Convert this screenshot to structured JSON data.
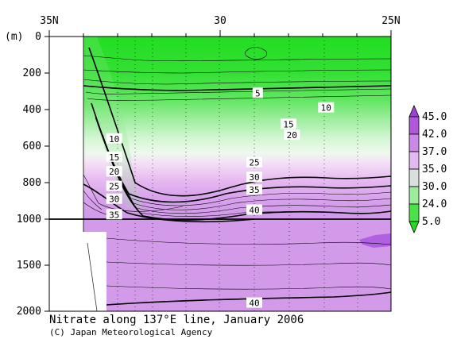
{
  "caption": {
    "title": "Nitrate along 137°E line, January 2006",
    "credit": "(C) Japan Meteorological Agency"
  },
  "chart_data": {
    "type": "contour",
    "title": "Nitrate along 137°E line, January 2006",
    "x_ticks": [
      "35N",
      "30",
      "25N"
    ],
    "x_range": [
      35,
      25
    ],
    "y_unit": "(m)",
    "y_ticks_upper": [
      "0",
      "200",
      "400",
      "600",
      "800",
      "1000"
    ],
    "y_ticks_lower": [
      "1500",
      "2000"
    ],
    "y_range": [
      0,
      2000
    ],
    "y_axis_break_at": 1000,
    "contour_labels": [
      {
        "value": "5",
        "lat": 28.9,
        "depth": 310
      },
      {
        "value": "10",
        "lat": 26.9,
        "depth": 390
      },
      {
        "value": "15",
        "lat": 28.0,
        "depth": 480
      },
      {
        "value": "20",
        "lat": 27.9,
        "depth": 540
      },
      {
        "value": "10",
        "lat": 33.1,
        "depth": 560
      },
      {
        "value": "15",
        "lat": 33.1,
        "depth": 660
      },
      {
        "value": "20",
        "lat": 33.1,
        "depth": 740
      },
      {
        "value": "25",
        "lat": 33.1,
        "depth": 820
      },
      {
        "value": "30",
        "lat": 33.1,
        "depth": 890
      },
      {
        "value": "35",
        "lat": 33.1,
        "depth": 975
      },
      {
        "value": "25",
        "lat": 29.0,
        "depth": 690
      },
      {
        "value": "30",
        "lat": 29.0,
        "depth": 770
      },
      {
        "value": "35",
        "lat": 29.0,
        "depth": 840
      },
      {
        "value": "40",
        "lat": 29.0,
        "depth": 950
      },
      {
        "value": "40",
        "lat": 29.0,
        "depth": 1910
      }
    ],
    "colorbar": {
      "labels": [
        "45.0",
        "42.0",
        "37.0",
        "35.0",
        "30.0",
        "24.0",
        "5.0"
      ],
      "colors": [
        "#a040d8",
        "#c070e0",
        "#d7a0ec",
        "#ecd2f6",
        "#c6f0c6",
        "#6fe66f",
        "#22dd22"
      ]
    }
  }
}
